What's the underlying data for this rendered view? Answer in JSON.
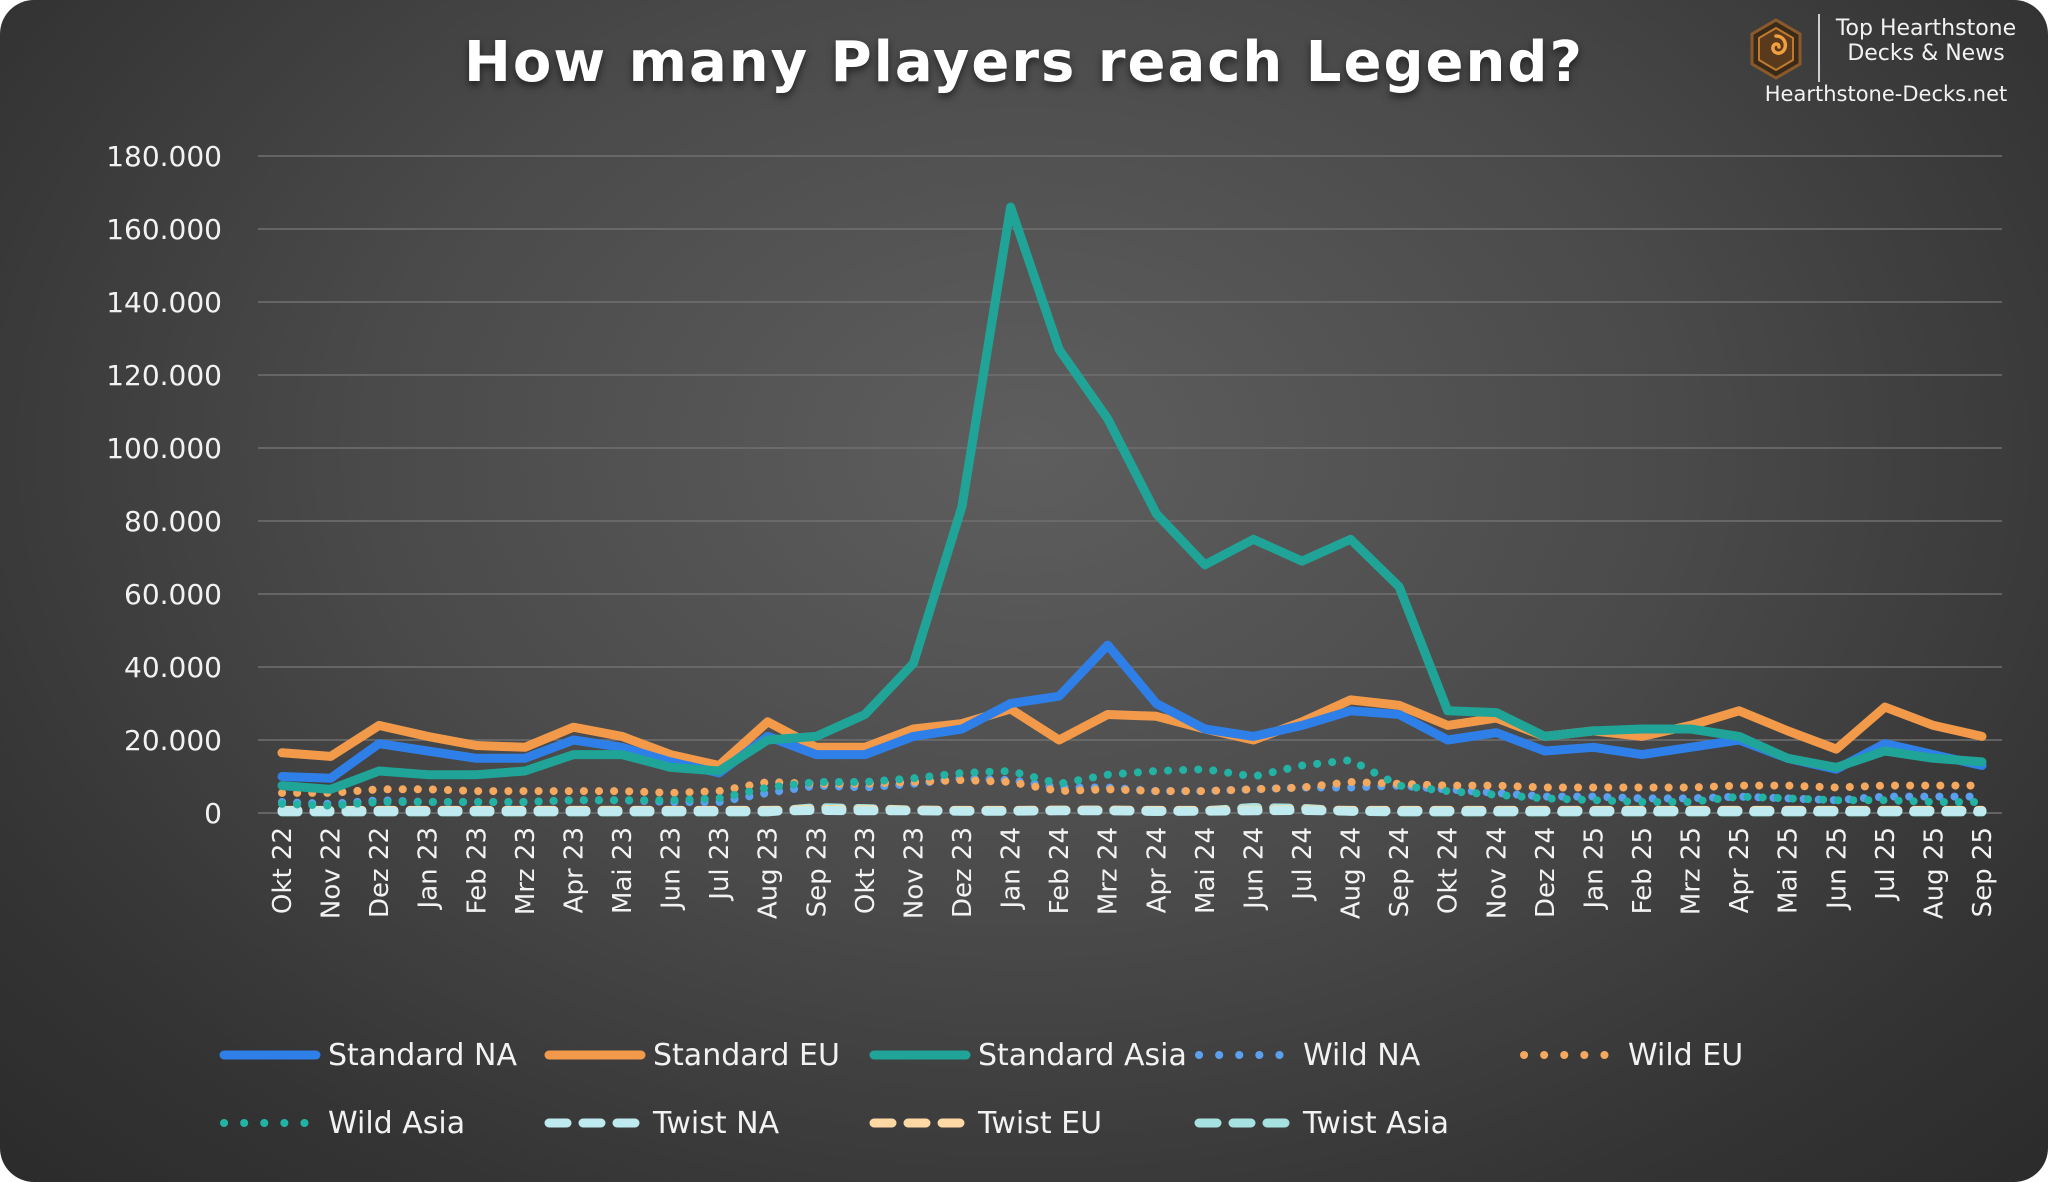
{
  "title": "How many Players reach Legend?",
  "brand": {
    "line1": "Top Hearthstone",
    "line2": "Decks & News",
    "url": "Hearthstone-Decks.net",
    "logo_icon": "hearthstone-logo-icon"
  },
  "chart_data": {
    "type": "line",
    "title": "How many Players reach Legend?",
    "xlabel": "",
    "ylabel": "",
    "ylim": [
      0,
      180000
    ],
    "yticks": [
      0,
      20000,
      40000,
      60000,
      80000,
      100000,
      120000,
      140000,
      160000,
      180000
    ],
    "ytick_labels": [
      "0",
      "20.000",
      "40.000",
      "60.000",
      "80.000",
      "100.000",
      "120.000",
      "140.000",
      "160.000",
      "180.000"
    ],
    "grid": true,
    "legend_position": "bottom",
    "categories": [
      "Okt 22",
      "Nov 22",
      "Dez 22",
      "Jan 23",
      "Feb 23",
      "Mrz 23",
      "Apr 23",
      "Mai 23",
      "Jun 23",
      "Jul 23",
      "Aug 23",
      "Sep 23",
      "Okt 23",
      "Nov 23",
      "Dez 23",
      "Jan 24",
      "Feb 24",
      "Mrz 24",
      "Apr 24",
      "Mai 24",
      "Jun 24",
      "Jul 24",
      "Aug 24",
      "Sep 24",
      "Okt 24",
      "Nov 24",
      "Dez 24",
      "Jan 25",
      "Feb 25",
      "Mrz 25",
      "Apr 25",
      "Mai 25",
      "Jun 25",
      "Jul 25",
      "Aug 25",
      "Sep 25"
    ],
    "series": [
      {
        "name": "Standard NA",
        "color": "#2f7fe8",
        "style": "solid",
        "values": [
          10000,
          9500,
          19000,
          17000,
          15000,
          15000,
          20000,
          18000,
          14000,
          11000,
          21000,
          16000,
          16000,
          21000,
          23000,
          30000,
          32000,
          46000,
          30000,
          23000,
          21000,
          24000,
          28000,
          27000,
          20000,
          22000,
          17000,
          18000,
          16000,
          18000,
          20000,
          15000,
          12000,
          19000,
          16000,
          13000
        ]
      },
      {
        "name": "Standard EU",
        "color": "#f29a4a",
        "style": "solid",
        "values": [
          16500,
          15500,
          24000,
          21000,
          18500,
          18000,
          23500,
          21000,
          16000,
          13000,
          25000,
          18000,
          18000,
          23000,
          24500,
          28500,
          20000,
          27000,
          26500,
          23000,
          20000,
          25000,
          31000,
          29500,
          24000,
          26000,
          21000,
          22500,
          21000,
          24000,
          28000,
          22500,
          17500,
          29000,
          24000,
          21000
        ]
      },
      {
        "name": "Standard Asia",
        "color": "#1fa497",
        "style": "solid",
        "values": [
          7500,
          6500,
          11500,
          10500,
          10500,
          11500,
          16000,
          16000,
          12500,
          11500,
          20000,
          21000,
          27000,
          41000,
          84000,
          166000,
          127000,
          108000,
          82000,
          68000,
          75000,
          69000,
          75000,
          62000,
          28000,
          27500,
          21000,
          22500,
          23000,
          23000,
          21000,
          15000,
          12500,
          17000,
          15000,
          14000
        ]
      },
      {
        "name": "Wild NA",
        "color": "#5aa0ee",
        "style": "dot",
        "values": [
          3000,
          2500,
          3500,
          3000,
          3000,
          3000,
          3500,
          3500,
          3000,
          3000,
          5500,
          7500,
          7000,
          8000,
          9500,
          9000,
          7000,
          7000,
          6000,
          6000,
          6500,
          7000,
          7000,
          7500,
          6500,
          5500,
          4500,
          4500,
          4000,
          4000,
          4500,
          4000,
          3500,
          4500,
          4500,
          4500
        ]
      },
      {
        "name": "Wild EU",
        "color": "#f5a85e",
        "style": "dot",
        "values": [
          5500,
          5500,
          6500,
          6500,
          6000,
          6000,
          6000,
          6000,
          5500,
          6000,
          8500,
          8000,
          8000,
          8500,
          9000,
          8500,
          6000,
          6500,
          6000,
          6000,
          6500,
          7000,
          8500,
          8000,
          7500,
          7500,
          7000,
          7000,
          7000,
          7000,
          7500,
          7500,
          7000,
          7500,
          7500,
          7500
        ]
      },
      {
        "name": "Wild Asia",
        "color": "#22b3a4",
        "style": "dot",
        "values": [
          2500,
          2000,
          3000,
          3000,
          3000,
          3000,
          3500,
          3500,
          3500,
          4000,
          7000,
          8500,
          8500,
          9500,
          11000,
          11500,
          8000,
          10500,
          11500,
          12000,
          10000,
          13000,
          14500,
          7500,
          6000,
          5000,
          4000,
          3500,
          3000,
          3000,
          4500,
          4000,
          3500,
          3500,
          3000,
          3000
        ]
      },
      {
        "name": "Twist NA",
        "color": "#bfeaf0",
        "style": "dash",
        "values": [
          500,
          500,
          500,
          500,
          500,
          500,
          500,
          500,
          500,
          500,
          500,
          700,
          600,
          600,
          500,
          500,
          600,
          600,
          500,
          500,
          600,
          700,
          500,
          500,
          500,
          500,
          500,
          500,
          500,
          500,
          500,
          500,
          500,
          500,
          500,
          500
        ]
      },
      {
        "name": "Twist EU",
        "color": "#ffd9a3",
        "style": "dash",
        "values": [
          700,
          700,
          700,
          700,
          700,
          700,
          700,
          700,
          700,
          700,
          700,
          1000,
          900,
          800,
          700,
          700,
          800,
          800,
          700,
          700,
          800,
          900,
          700,
          700,
          700,
          700,
          700,
          700,
          700,
          700,
          700,
          700,
          700,
          700,
          700,
          700
        ]
      },
      {
        "name": "Twist Asia",
        "color": "#a6e3e0",
        "style": "dash",
        "values": [
          300,
          300,
          300,
          300,
          300,
          300,
          300,
          300,
          300,
          300,
          300,
          1500,
          1200,
          800,
          600,
          600,
          700,
          800,
          400,
          600,
          1500,
          1300,
          500,
          300,
          300,
          300,
          300,
          300,
          300,
          300,
          300,
          300,
          300,
          300,
          300,
          300
        ]
      }
    ]
  }
}
